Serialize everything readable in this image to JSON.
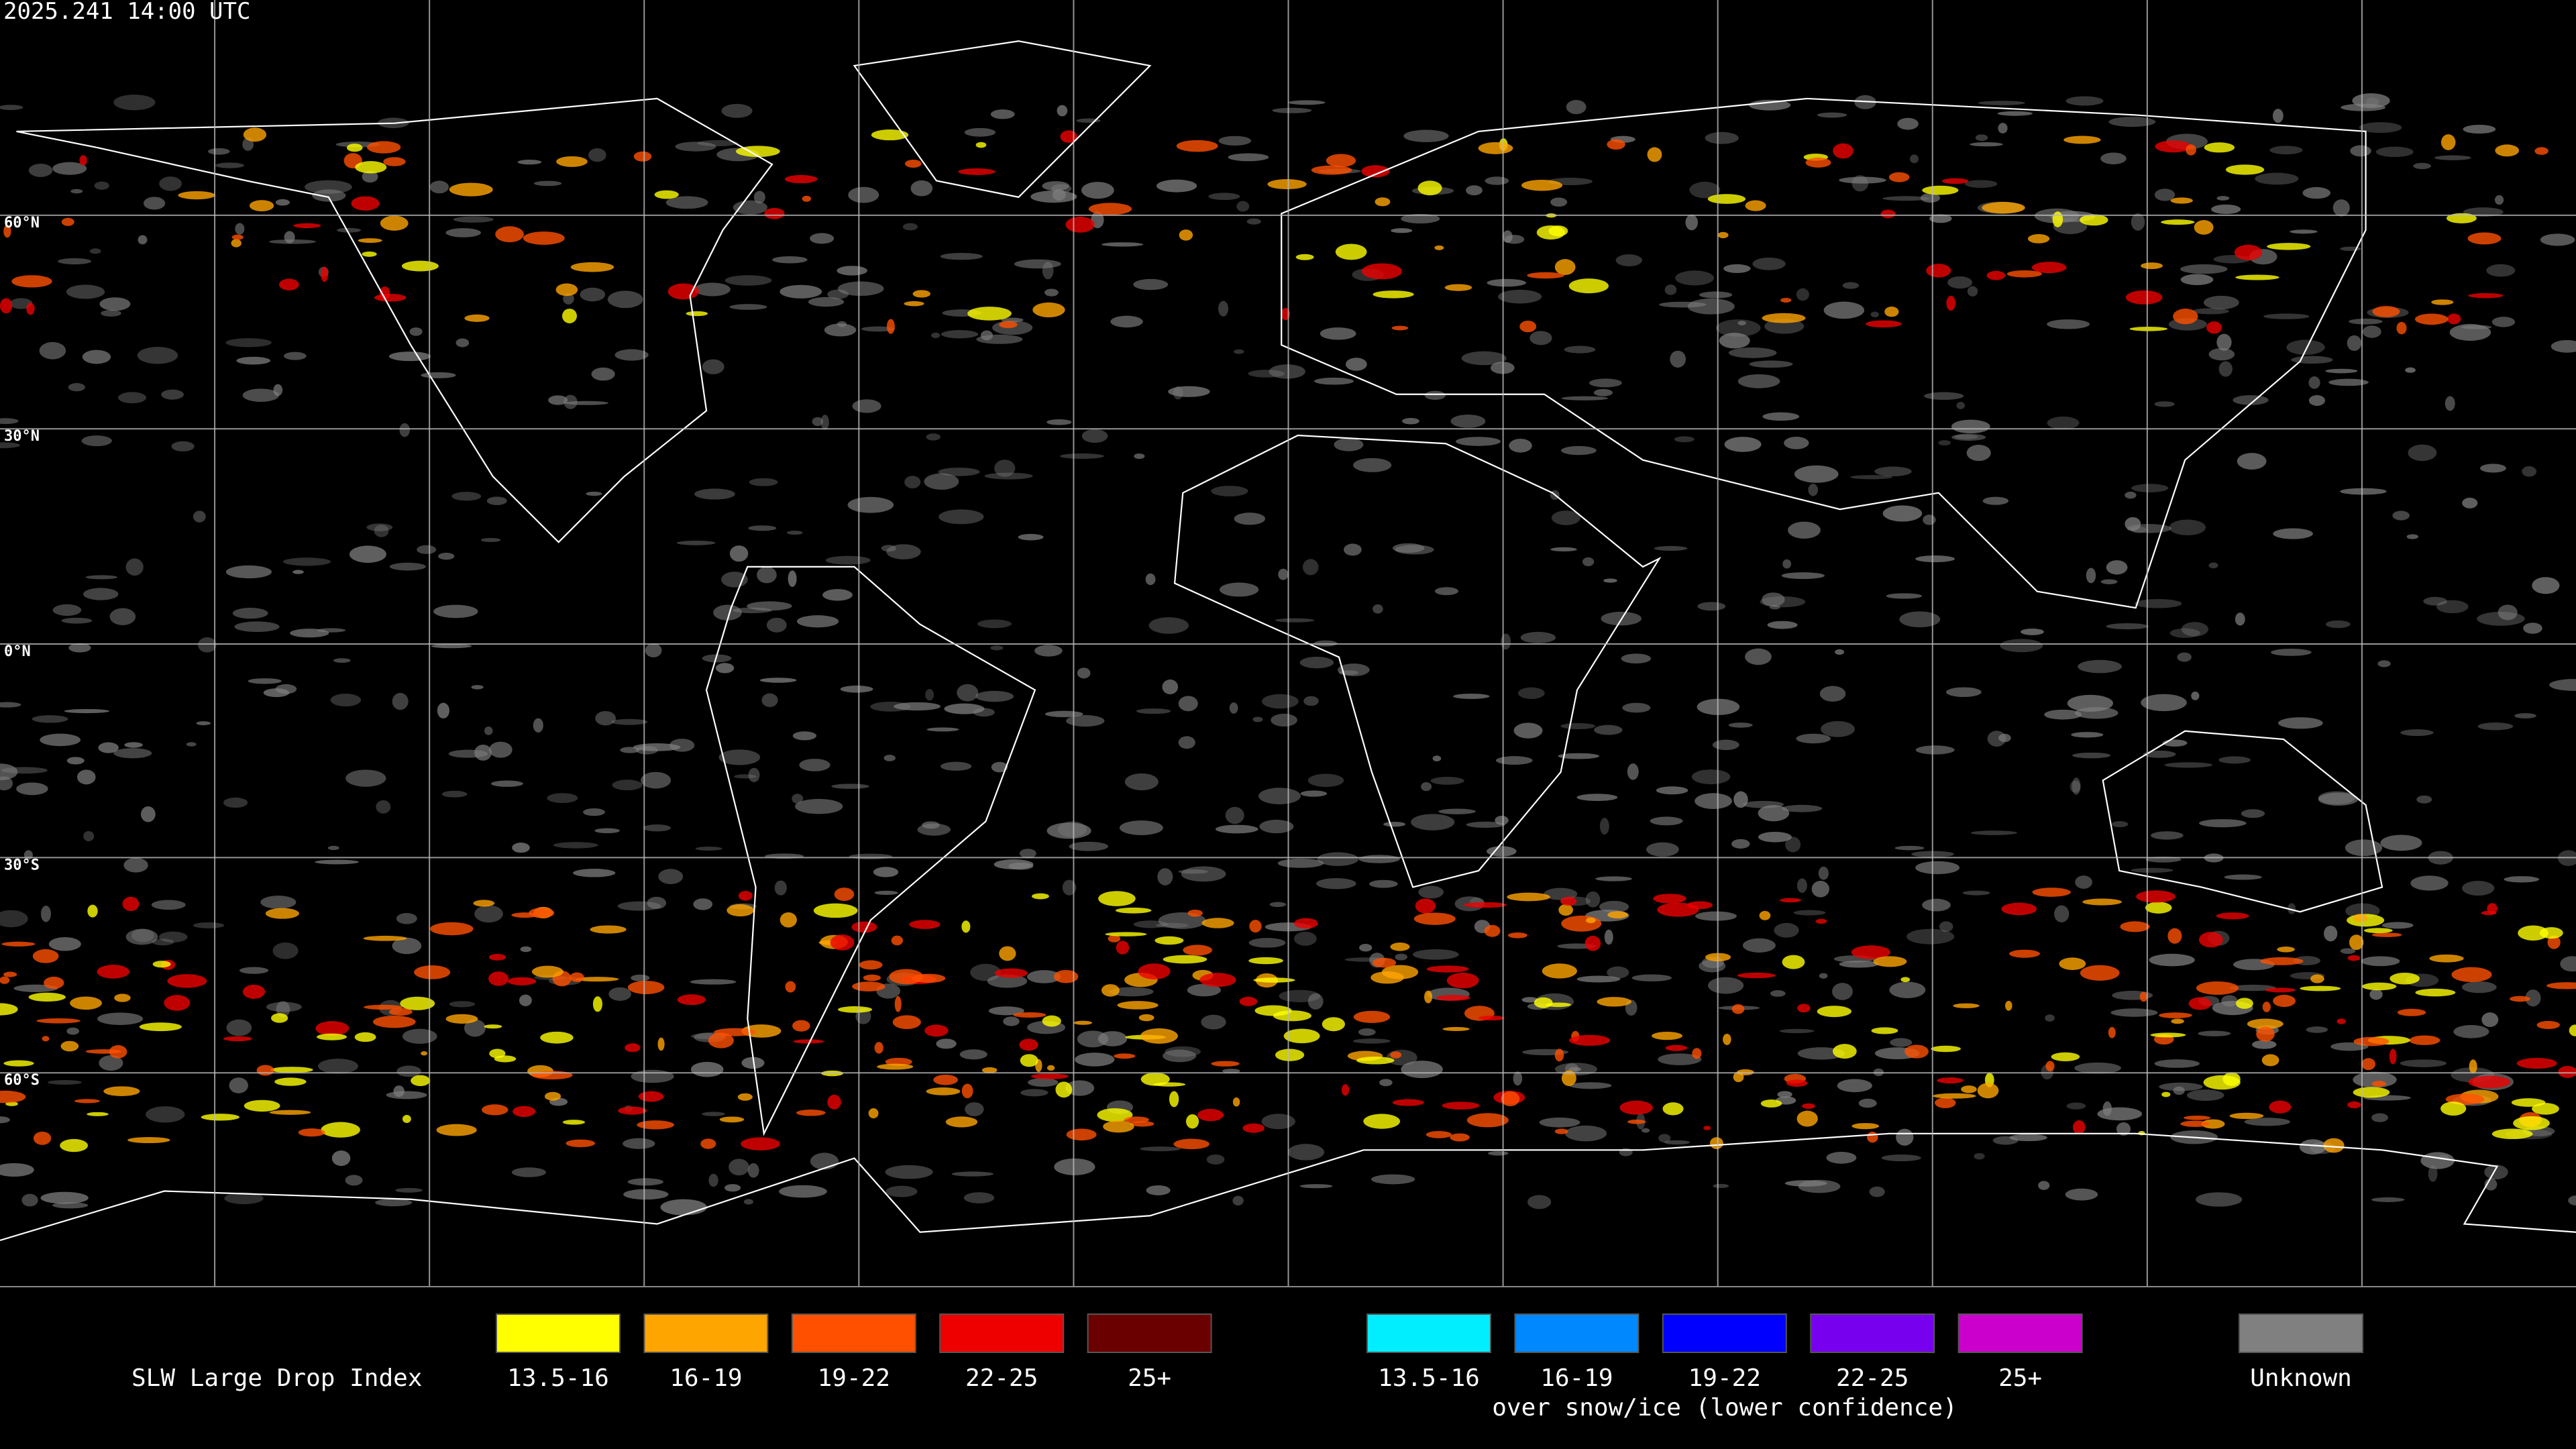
{
  "header": {
    "timestamp": "2025.241 14:00 UTC"
  },
  "map": {
    "latitude_labels": [
      "60°N",
      "30°N",
      "0°N",
      "30°S",
      "60°S"
    ]
  },
  "legend": {
    "title": "SLW Large Drop Index",
    "groups": [
      {
        "items": [
          {
            "label": "13.5-16",
            "color": "#ffff00"
          },
          {
            "label": "16-19",
            "color": "#ffa500"
          },
          {
            "label": "19-22",
            "color": "#ff5000"
          },
          {
            "label": "22-25",
            "color": "#ee0000"
          },
          {
            "label": "25+",
            "color": "#6b0000"
          }
        ]
      },
      {
        "items": [
          {
            "label": "13.5-16",
            "color": "#00eeff"
          },
          {
            "label": "16-19",
            "color": "#0088ff"
          },
          {
            "label": "19-22",
            "color": "#0000ff"
          },
          {
            "label": "22-25",
            "color": "#7700ee"
          },
          {
            "label": "25+",
            "color": "#cc00cc"
          }
        ],
        "note": "over snow/ice (lower confidence)"
      }
    ],
    "unknown": {
      "label": "Unknown",
      "color": "#808080"
    }
  }
}
